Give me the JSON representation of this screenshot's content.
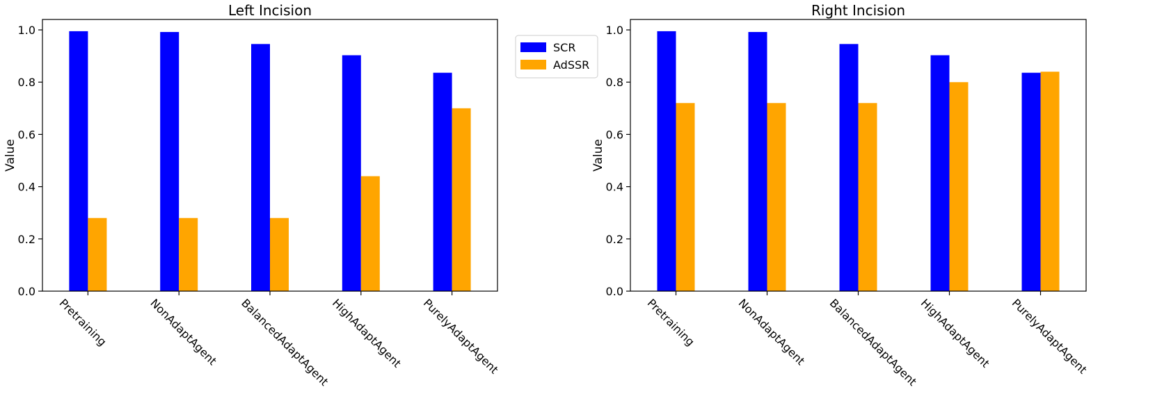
{
  "chart_data": [
    {
      "type": "bar",
      "title": "Left Incision",
      "xlabel": "",
      "ylabel": "Value",
      "ylim": [
        0,
        1.04
      ],
      "yticks": [
        "0.0",
        "0.2",
        "0.4",
        "0.6",
        "0.8",
        "1.0"
      ],
      "categories": [
        "Pretraining",
        "NonAdaptAgent",
        "BalancedAdaptAgent",
        "HighAdaptAgent",
        "PurelyAdaptAgent"
      ],
      "series": [
        {
          "name": "SCR",
          "color": "#0000ff",
          "values": [
            0.995,
            0.992,
            0.946,
            0.903,
            0.836
          ]
        },
        {
          "name": "AdSSR",
          "color": "#ffa500",
          "values": [
            0.28,
            0.28,
            0.28,
            0.44,
            0.7
          ]
        }
      ],
      "legend": "outside-right"
    },
    {
      "type": "bar",
      "title": "Right Incision",
      "xlabel": "",
      "ylabel": "Value",
      "ylim": [
        0,
        1.04
      ],
      "yticks": [
        "0.0",
        "0.2",
        "0.4",
        "0.6",
        "0.8",
        "1.0"
      ],
      "categories": [
        "Pretraining",
        "NonAdaptAgent",
        "BalancedAdaptAgent",
        "HighAdaptAgent",
        "PurelyAdaptAgent"
      ],
      "series": [
        {
          "name": "SCR",
          "color": "#0000ff",
          "values": [
            0.995,
            0.992,
            0.946,
            0.903,
            0.836
          ]
        },
        {
          "name": "AdSSR",
          "color": "#ffa500",
          "values": [
            0.72,
            0.72,
            0.72,
            0.8,
            0.84
          ]
        }
      ]
    }
  ],
  "legend": {
    "entries": [
      {
        "label": "SCR",
        "color": "#0000ff"
      },
      {
        "label": "AdSSR",
        "color": "#ffa500"
      }
    ]
  }
}
